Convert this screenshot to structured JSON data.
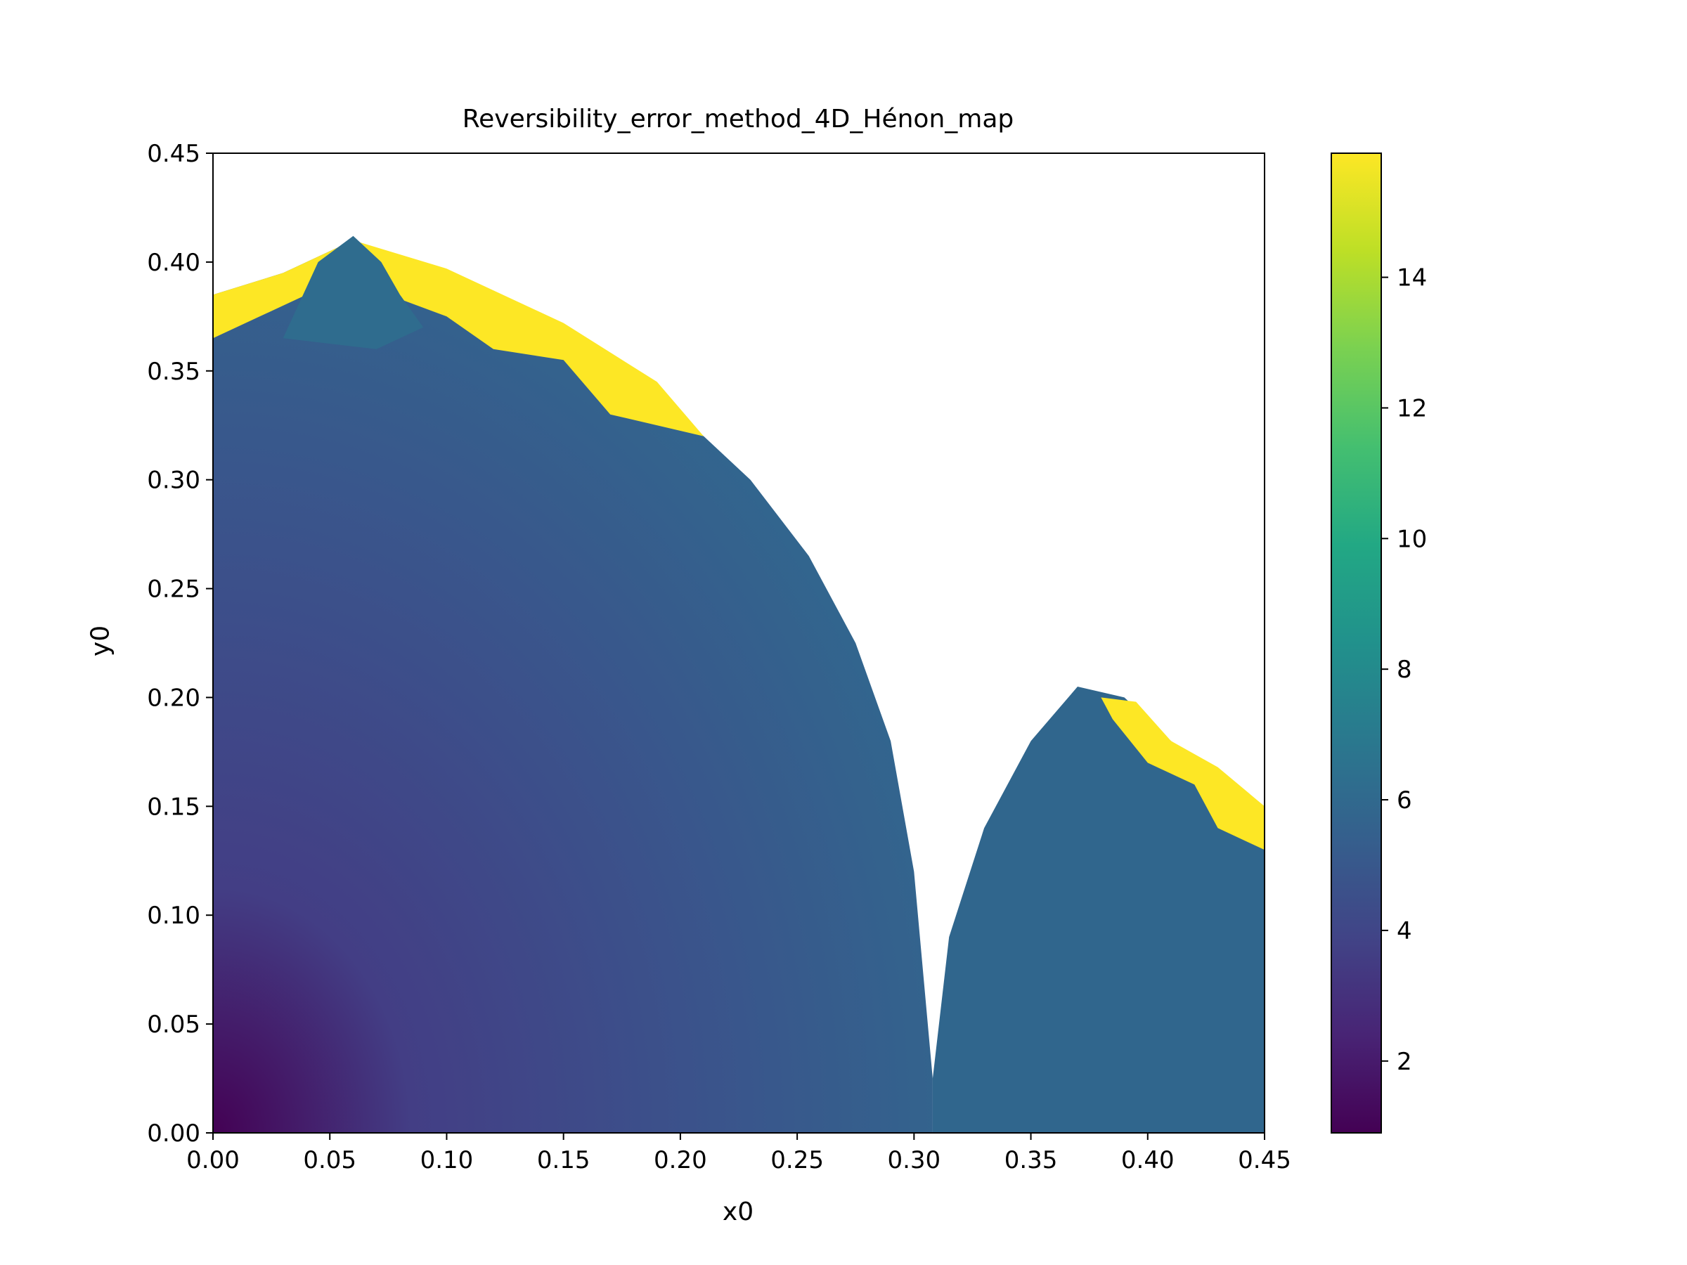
{
  "chart_data": {
    "type": "heatmap",
    "title": "Reversibility_error_method_4D_Hénon_map",
    "xlabel": "x0",
    "ylabel": "y0",
    "xlim": [
      0.0,
      0.45
    ],
    "ylim": [
      0.0,
      0.45
    ],
    "x_ticks": [
      "0.00",
      "0.05",
      "0.10",
      "0.15",
      "0.20",
      "0.25",
      "0.30",
      "0.35",
      "0.40",
      "0.45"
    ],
    "y_ticks": [
      "0.00",
      "0.05",
      "0.10",
      "0.15",
      "0.20",
      "0.25",
      "0.30",
      "0.35",
      "0.40",
      "0.45"
    ],
    "colorbar": {
      "colormap": "viridis",
      "range": [
        0.9,
        15.9
      ],
      "ticks": [
        "2",
        "4",
        "6",
        "8",
        "10",
        "12",
        "14"
      ],
      "tick_values": [
        2,
        4,
        6,
        8,
        10,
        12,
        14
      ]
    },
    "grid": false,
    "description_regions": {
      "left_lobe_boundary": [
        [
          0.0,
          0.385
        ],
        [
          0.03,
          0.395
        ],
        [
          0.06,
          0.41
        ],
        [
          0.1,
          0.395
        ],
        [
          0.15,
          0.37
        ],
        [
          0.2,
          0.33
        ],
        [
          0.23,
          0.3
        ],
        [
          0.255,
          0.265
        ],
        [
          0.275,
          0.225
        ],
        [
          0.29,
          0.18
        ],
        [
          0.3,
          0.12
        ],
        [
          0.308,
          0.025
        ]
      ],
      "right_lobe_boundary": [
        [
          0.308,
          0.025
        ],
        [
          0.315,
          0.09
        ],
        [
          0.33,
          0.14
        ],
        [
          0.35,
          0.18
        ],
        [
          0.37,
          0.205
        ],
        [
          0.39,
          0.2
        ],
        [
          0.41,
          0.18
        ],
        [
          0.43,
          0.165
        ],
        [
          0.45,
          0.15
        ]
      ]
    }
  }
}
